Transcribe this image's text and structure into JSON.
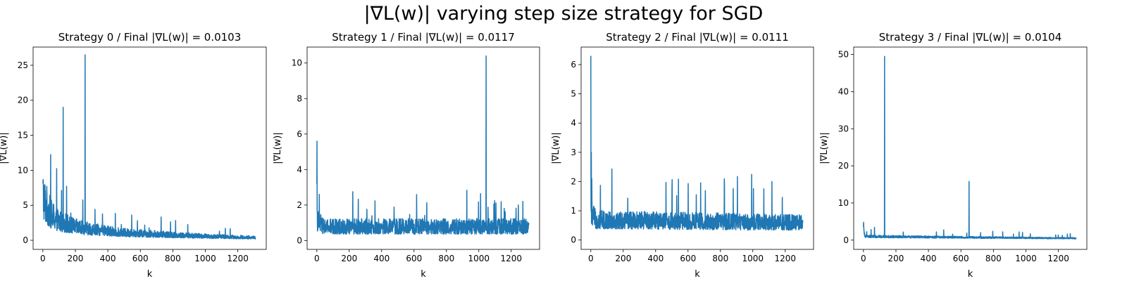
{
  "figure": {
    "title": "|∇L(w)| varying step size strategy for SGD"
  },
  "chart_data": [
    {
      "type": "line",
      "title": "Strategy 0 / Final |∇L(w)| = 0.0103",
      "xlabel": "k",
      "ylabel": "|∇L(w)|",
      "xlim": [
        -60,
        1375
      ],
      "ylim": [
        -1.3,
        27.6
      ],
      "xticks": [
        0,
        200,
        400,
        600,
        800,
        1000,
        1200
      ],
      "yticks": [
        0,
        5,
        10,
        15,
        20,
        25
      ],
      "n_points": 1310,
      "series": [
        {
          "color": "#1f77b4",
          "profile": [
            [
              0,
              7.0
            ],
            [
              15,
              5.5
            ],
            [
              50,
              3.8
            ],
            [
              100,
              2.8
            ],
            [
              200,
              2.0
            ],
            [
              300,
              1.6
            ],
            [
              500,
              1.1
            ],
            [
              800,
              0.8
            ],
            [
              1000,
              0.6
            ],
            [
              1310,
              0.4
            ]
          ],
          "noise": 0.55,
          "spikes": [
            [
              3,
              7.8
            ],
            [
              125,
              19.0
            ],
            [
              260,
              26.5
            ]
          ]
        }
      ]
    },
    {
      "type": "line",
      "title": "Strategy 1 / Final |∇L(w)| = 0.0117",
      "xlabel": "k",
      "ylabel": "|∇L(w)|",
      "xlim": [
        -60,
        1375
      ],
      "ylim": [
        -0.5,
        10.9
      ],
      "xticks": [
        0,
        200,
        400,
        600,
        800,
        1000,
        1200
      ],
      "yticks": [
        0,
        2,
        4,
        6,
        8,
        10
      ],
      "n_points": 1310,
      "series": [
        {
          "color": "#1f77b4",
          "profile": [
            [
              0,
              1.2
            ],
            [
              40,
              0.8
            ],
            [
              1310,
              0.8
            ]
          ],
          "noise": 0.55,
          "spikes": [
            [
              1,
              5.6
            ],
            [
              15,
              2.6
            ],
            [
              1045,
              10.4
            ]
          ]
        }
      ]
    },
    {
      "type": "line",
      "title": "Strategy 2 / Final |∇L(w)| = 0.0111",
      "xlabel": "k",
      "ylabel": "|∇L(w)|",
      "xlim": [
        -60,
        1375
      ],
      "ylim": [
        -0.32,
        6.6
      ],
      "xticks": [
        0,
        200,
        400,
        600,
        800,
        1000,
        1200
      ],
      "yticks": [
        0,
        1,
        2,
        3,
        4,
        5,
        6
      ],
      "n_points": 1310,
      "series": [
        {
          "color": "#1f77b4",
          "profile": [
            [
              0,
              1.0
            ],
            [
              30,
              0.7
            ],
            [
              1310,
              0.6
            ]
          ],
          "noise": 0.45,
          "spikes": [
            [
              0,
              6.3
            ],
            [
              3,
              3.0
            ],
            [
              6,
              2.1
            ]
          ]
        }
      ]
    },
    {
      "type": "line",
      "title": "Strategy 3 / Final |∇L(w)| = 0.0104",
      "xlabel": "k",
      "ylabel": "|∇L(w)|",
      "xlim": [
        -60,
        1375
      ],
      "ylim": [
        -2.5,
        52.0
      ],
      "xticks": [
        0,
        200,
        400,
        600,
        800,
        1000,
        1200
      ],
      "yticks": [
        0,
        10,
        20,
        30,
        40,
        50
      ],
      "n_points": 1310,
      "series": [
        {
          "color": "#1f77b4",
          "profile": [
            [
              0,
              3.0
            ],
            [
              10,
              1.0
            ],
            [
              1310,
              0.5
            ]
          ],
          "noise": 0.35,
          "spikes": [
            [
              1,
              4.8
            ],
            [
              130,
              49.5
            ],
            [
              650,
              15.8
            ]
          ]
        }
      ]
    }
  ]
}
